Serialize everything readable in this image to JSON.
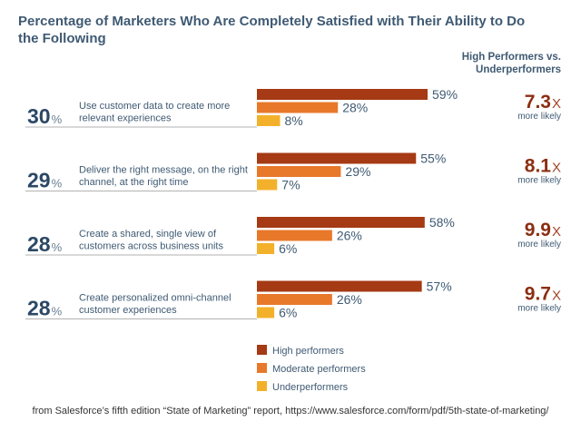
{
  "chart_data": {
    "type": "bar",
    "orientation": "horizontal",
    "title": "Percentage of Marketers Who Are Completely Satisfied with Their Ability to Do the Following",
    "ratio_header": [
      "High Performers vs.",
      "Underperformers"
    ],
    "xlim": [
      0,
      100
    ],
    "categories": [
      {
        "total": "30",
        "label": [
          "Use customer data to create more",
          "relevant experiences"
        ],
        "ratio": "7.3",
        "ratio_text": "more likely"
      },
      {
        "total": "29",
        "label": [
          "Deliver the right message, on the right",
          "channel, at the right time"
        ],
        "ratio": "8.1",
        "ratio_text": "more likely"
      },
      {
        "total": "28",
        "label": [
          "Create a shared, single view of",
          "customers across business units"
        ],
        "ratio": "9.9",
        "ratio_text": "more likely"
      },
      {
        "total": "28",
        "label": [
          "Create personalized omni-channel",
          "customer experiences"
        ],
        "ratio": "9.7",
        "ratio_text": "more likely"
      }
    ],
    "series": [
      {
        "name": "High performers",
        "color": "#a53a14",
        "values": [
          59,
          55,
          58,
          57
        ]
      },
      {
        "name": "Moderate performers",
        "color": "#e8782a",
        "values": [
          28,
          29,
          26,
          26
        ]
      },
      {
        "name": "Underperformers",
        "color": "#f3b12b",
        "values": [
          8,
          7,
          6,
          6
        ]
      }
    ],
    "value_suffix": "%",
    "total_suffix": "%",
    "ratio_suffix": "X",
    "legend_position": "bottom-center",
    "colors": {
      "title": "#3f5a73",
      "ratio": "#8b2e12",
      "text": "#3f5a73"
    }
  },
  "source": "from Salesforce’s fifth edition “State of Marketing” report, https://www.salesforce.com/form/pdf/5th-state-of-marketing/"
}
